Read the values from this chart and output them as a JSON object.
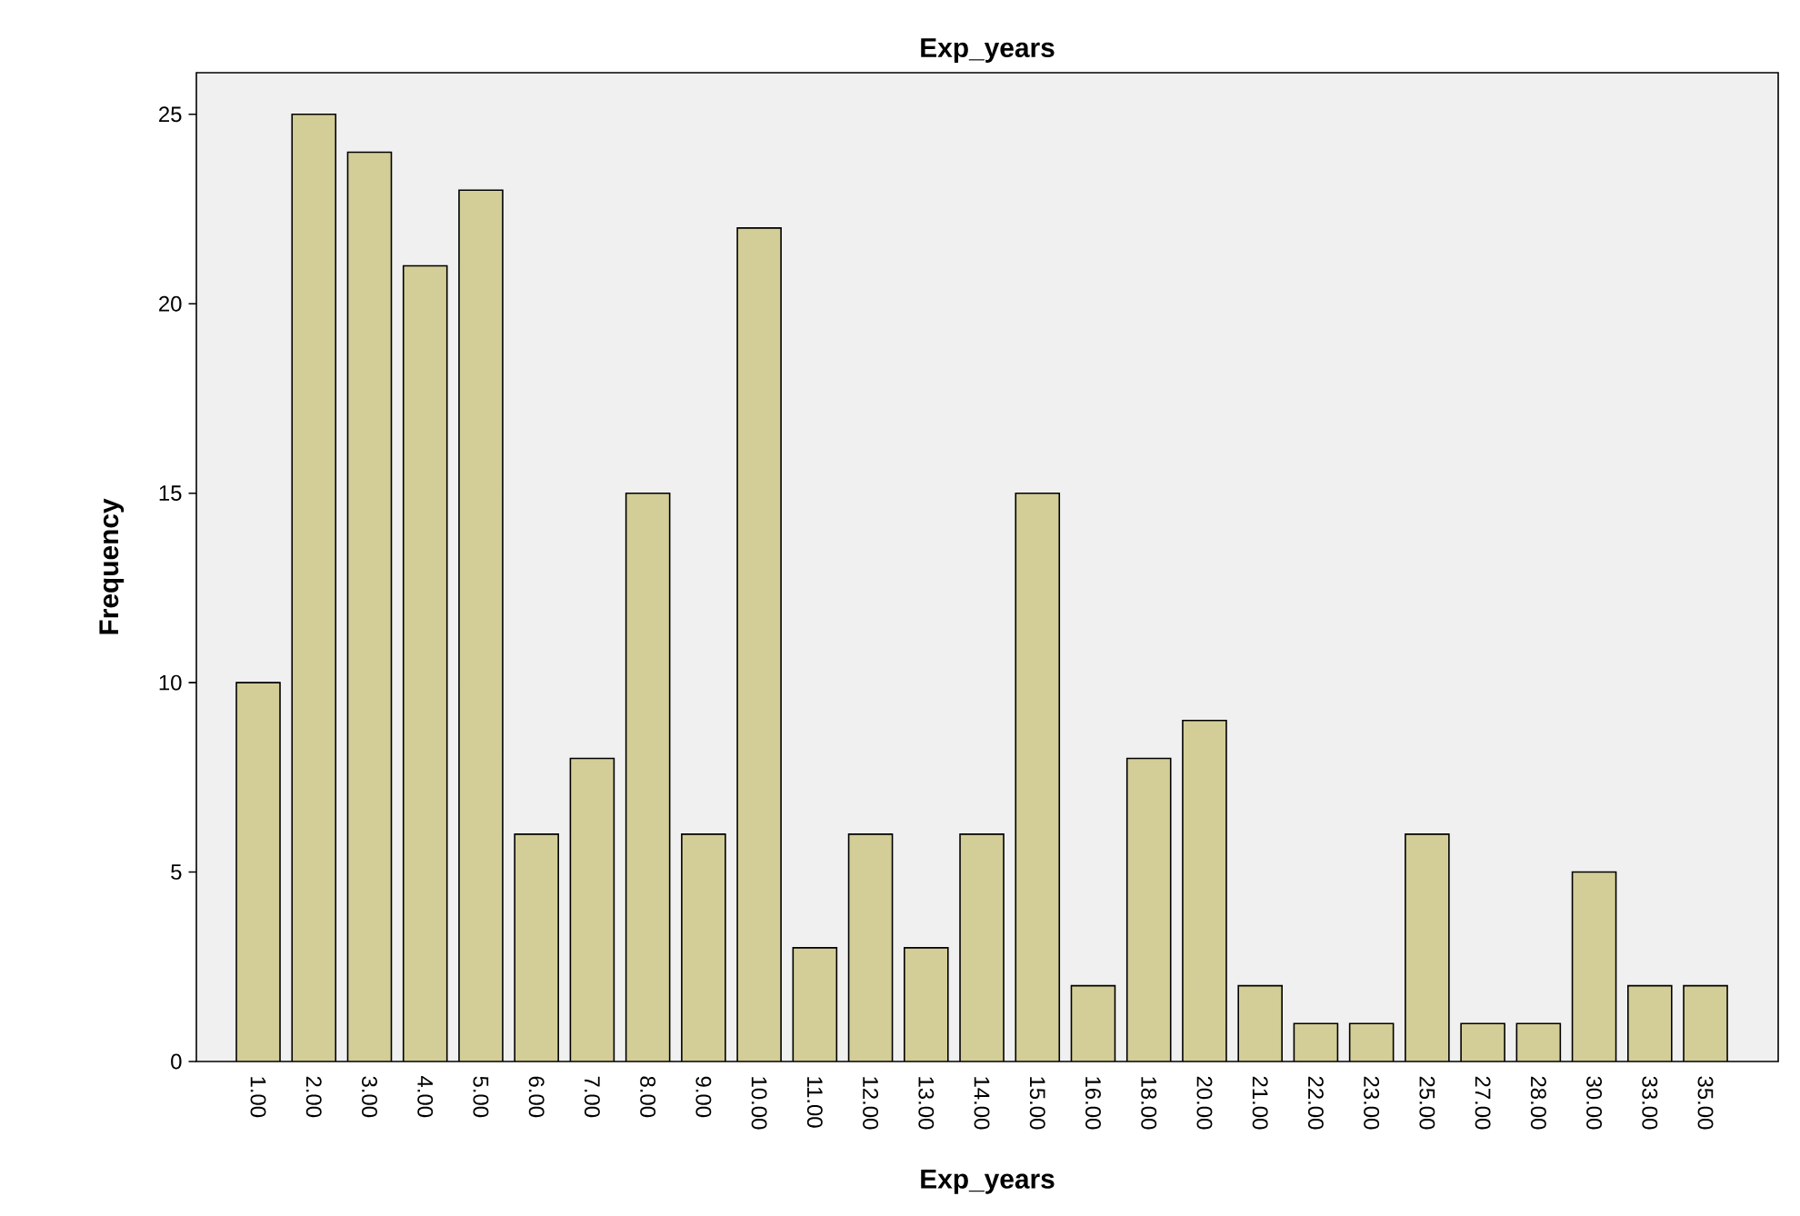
{
  "chart_data": {
    "type": "bar",
    "title": "Exp_years",
    "xlabel": "Exp_years",
    "ylabel": "Frequency",
    "categories": [
      "1.00",
      "2.00",
      "3.00",
      "4.00",
      "5.00",
      "6.00",
      "7.00",
      "8.00",
      "9.00",
      "10.00",
      "11.00",
      "12.00",
      "13.00",
      "14.00",
      "15.00",
      "16.00",
      "18.00",
      "20.00",
      "21.00",
      "22.00",
      "23.00",
      "25.00",
      "27.00",
      "28.00",
      "30.00",
      "33.00",
      "35.00"
    ],
    "values": [
      10,
      25,
      24,
      21,
      23,
      6,
      8,
      15,
      6,
      22,
      3,
      6,
      3,
      6,
      15,
      2,
      8,
      9,
      2,
      1,
      1,
      6,
      1,
      1,
      5,
      2,
      2
    ],
    "color": "#d3ce97",
    "ylim": [
      0,
      26.1
    ],
    "yticks": [
      0,
      5,
      10,
      15,
      20,
      25
    ]
  }
}
